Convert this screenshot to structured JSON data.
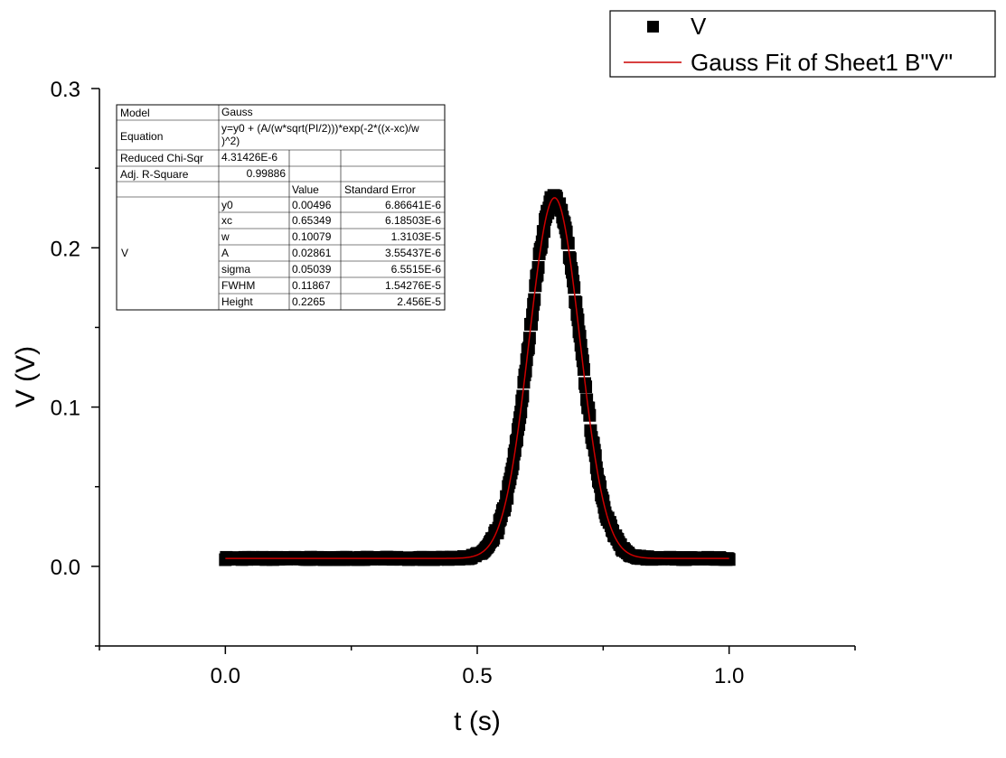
{
  "chart_data": {
    "type": "scatter",
    "xlabel": "t (s)",
    "ylabel": "V (V)",
    "xlim": [
      -0.25,
      1.25
    ],
    "ylim": [
      -0.05,
      0.3
    ],
    "xticks": [
      "0.0",
      "0.5",
      "1.0"
    ],
    "xtick_values": [
      0.0,
      0.5,
      1.0
    ],
    "xminor_values": [
      -0.25,
      0.25,
      0.75,
      1.25
    ],
    "yticks": [
      "0.0",
      "0.1",
      "0.2",
      "0.3"
    ],
    "ytick_values": [
      0.0,
      0.1,
      0.2,
      0.3
    ],
    "yminor_values": [
      -0.05,
      0.05,
      0.15,
      0.25
    ],
    "data_range": [
      0.0,
      1.0
    ],
    "series": [
      {
        "name": "V",
        "kind": "scatter",
        "marker": "square",
        "color": "#000000"
      },
      {
        "name": "Gauss Fit of Sheet1 B\"V\"",
        "kind": "line",
        "color": "#cc0000",
        "model": {
          "y0": 0.00496,
          "xc": 0.65349,
          "w": 0.10079,
          "A": 0.02861
        }
      }
    ],
    "legend_position": "top-right",
    "grid": false
  },
  "fit_table": {
    "rows": [
      [
        "Model",
        "Gauss",
        "",
        ""
      ],
      [
        "Equation",
        "y=y0 + (A/(w*sqrt(PI/2)))*exp(-2*((x-xc)/w)^2)",
        "",
        ""
      ],
      [
        "Reduced Chi-Sqr",
        "4.31426E-6",
        "",
        ""
      ],
      [
        "Adj. R-Square",
        "0.99886",
        "",
        ""
      ],
      [
        "",
        "",
        "Value",
        "Standard Error"
      ]
    ],
    "equation_line1": "y=y0 + (A/(w*sqrt(PI/2)))*exp(-2*((x-xc)/w",
    "equation_line2": ")^2)",
    "group_label": "V",
    "params": [
      {
        "name": "y0",
        "value": "0.00496",
        "error": "6.86641E-6"
      },
      {
        "name": "xc",
        "value": "0.65349",
        "error": "6.18503E-6"
      },
      {
        "name": "w",
        "value": "0.10079",
        "error": "1.3103E-5"
      },
      {
        "name": "A",
        "value": "0.02861",
        "error": "3.55437E-6"
      },
      {
        "name": "sigma",
        "value": "0.05039",
        "error": "6.5515E-6"
      },
      {
        "name": "FWHM",
        "value": "0.11867",
        "error": "1.54276E-5"
      },
      {
        "name": "Height",
        "value": "0.2265",
        "error": "2.456E-5"
      }
    ]
  }
}
